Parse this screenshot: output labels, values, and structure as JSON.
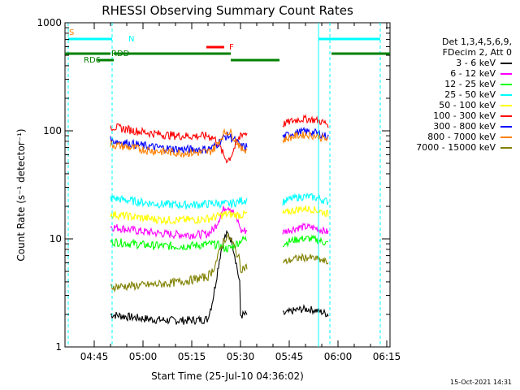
{
  "chart_data": {
    "type": "line",
    "title": "RHESSI Observing Summary Count Rates",
    "xlabel": "Start Time (25-Jul-10 04:36:02)",
    "ylabel": "Count Rate (s⁻¹ detector⁻¹)",
    "yscale": "log",
    "ylim": [
      1,
      1000
    ],
    "y_tick_labels": [
      "1",
      "10",
      "100",
      "1000"
    ],
    "x_tick_labels": [
      "04:45",
      "05:00",
      "05:15",
      "05:30",
      "05:45",
      "06:00",
      "06:15"
    ],
    "x_range_minutes": [
      0,
      100
    ],
    "legend_header": [
      "Det 1,3,4,5,6,9,",
      "FDecim 2, Att 0"
    ],
    "series": [
      {
        "name": "3 - 6 keV",
        "color": "#000000",
        "level_start": 2,
        "level_mid": 2,
        "level_end": 2,
        "flare": 12
      },
      {
        "name": "6 - 12 keV",
        "color": "#ff00ff",
        "level_start": 13,
        "level_mid": 12,
        "level_end": 11.5,
        "flare": 21
      },
      {
        "name": "12 - 25 keV",
        "color": "#00ff00",
        "level_start": 9.5,
        "level_mid": 10,
        "level_end": 9,
        "flare": 8
      },
      {
        "name": "25 - 50 keV",
        "color": "#00ffff",
        "level_start": 24,
        "level_mid": 23,
        "level_end": 22,
        "flare": 21
      },
      {
        "name": "50 - 100 keV",
        "color": "#ffff00",
        "level_start": 17,
        "level_mid": 17,
        "level_end": 17,
        "flare": 17
      },
      {
        "name": "100 - 300 keV",
        "color": "#ff0000",
        "level_start": 110,
        "level_mid": 95,
        "level_end": 115,
        "flare": 50
      },
      {
        "name": "300 - 800 keV",
        "color": "#0000ff",
        "level_start": 82,
        "level_mid": 72,
        "level_end": 88,
        "flare": 92
      },
      {
        "name": "800 - 7000 keV",
        "color": "#ff8000",
        "level_start": 75,
        "level_mid": 68,
        "level_end": 82,
        "flare": 102
      },
      {
        "name": "7000 - 15000 keV",
        "color": "#808000",
        "level_start": 3.6,
        "level_mid": 5.5,
        "level_end": 6,
        "flare": 11
      }
    ],
    "flag_labels": {
      "saa": "S",
      "night": "N",
      "flare": "F",
      "rd6": "RD6",
      "rdd": "RDD"
    },
    "footer_date": "15-Oct-2021 14:31"
  }
}
